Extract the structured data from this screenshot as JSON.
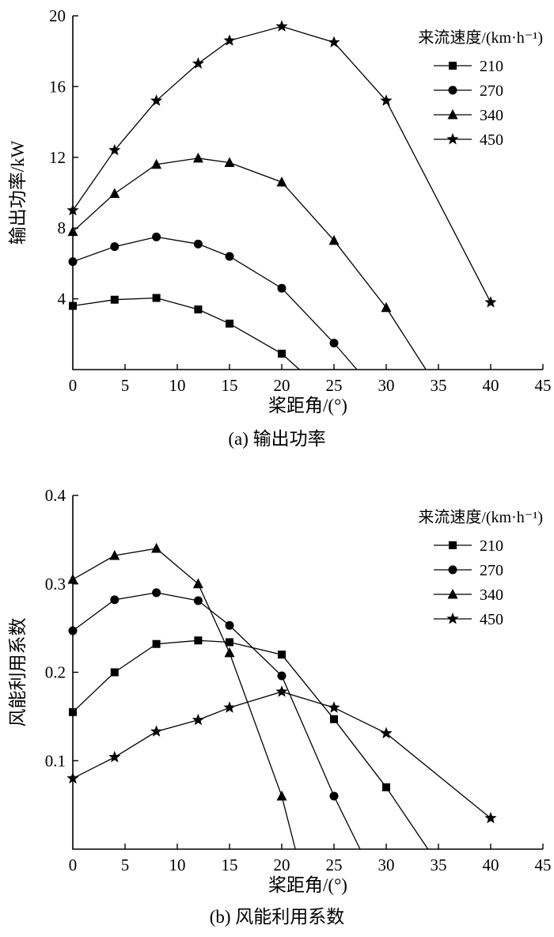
{
  "chart_data": [
    {
      "id": "a",
      "type": "line",
      "caption": "(a) 输出功率",
      "xlabel": "桨距角/(°)",
      "ylabel": "输出功率/kW",
      "xlim": [
        0,
        45
      ],
      "ylim": [
        0,
        20
      ],
      "xticks": [
        0,
        5,
        10,
        15,
        20,
        25,
        30,
        35,
        40,
        45
      ],
      "xtick_labels": [
        "0",
        "5",
        "10",
        "15",
        "20",
        "25",
        "30",
        "35",
        "40",
        "45"
      ],
      "yticks": [
        4,
        8,
        12,
        16,
        20
      ],
      "ytick_labels": [
        "4",
        "8",
        "12",
        "16",
        "20"
      ],
      "grid": false,
      "legend_position": "top-right",
      "legend_title": "来流速度/(km·h⁻¹)",
      "line_color": "#000000",
      "series": [
        {
          "name": "210",
          "marker": "square",
          "x": [
            0,
            4,
            8,
            12,
            15,
            20
          ],
          "y": [
            3.6,
            3.95,
            4.05,
            3.4,
            2.6,
            0.9
          ],
          "tail": [
            21.7,
            0
          ]
        },
        {
          "name": "270",
          "marker": "circle",
          "x": [
            0,
            4,
            8,
            12,
            15,
            20,
            25
          ],
          "y": [
            6.1,
            6.95,
            7.5,
            7.1,
            6.4,
            4.6,
            1.5
          ],
          "tail": [
            27.2,
            0
          ]
        },
        {
          "name": "340",
          "marker": "triangle",
          "x": [
            0,
            4,
            8,
            12,
            15,
            20,
            25,
            30
          ],
          "y": [
            7.8,
            9.95,
            11.6,
            11.95,
            11.7,
            10.6,
            7.3,
            3.5
          ],
          "tail": [
            33.8,
            0
          ]
        },
        {
          "name": "450",
          "marker": "star",
          "x": [
            0,
            4,
            8,
            12,
            15,
            20,
            25,
            30,
            40
          ],
          "y": [
            9.0,
            12.4,
            15.2,
            17.3,
            18.6,
            19.4,
            18.5,
            15.2,
            3.8
          ]
        }
      ]
    },
    {
      "id": "b",
      "type": "line",
      "caption": "(b) 风能利用系数",
      "xlabel": "桨距角/(°)",
      "ylabel": "风能利用系数",
      "xlim": [
        0,
        45
      ],
      "ylim": [
        0,
        0.4
      ],
      "xticks": [
        0,
        5,
        10,
        15,
        20,
        25,
        30,
        35,
        40,
        45
      ],
      "xtick_labels": [
        "0",
        "5",
        "10",
        "15",
        "20",
        "25",
        "30",
        "35",
        "40",
        "45"
      ],
      "yticks": [
        0.1,
        0.2,
        0.3,
        0.4
      ],
      "ytick_labels": [
        "0.1",
        "0.2",
        "0.3",
        "0.4"
      ],
      "grid": false,
      "legend_position": "top-right",
      "legend_title": "来流速度/(km·h⁻¹)",
      "line_color": "#000000",
      "series": [
        {
          "name": "210",
          "marker": "square",
          "x": [
            0,
            4,
            8,
            12,
            15,
            20,
            25,
            30
          ],
          "y": [
            0.155,
            0.2,
            0.232,
            0.236,
            0.234,
            0.22,
            0.147,
            0.07
          ],
          "tail": [
            34,
            0
          ]
        },
        {
          "name": "270",
          "marker": "circle",
          "x": [
            0,
            4,
            8,
            12,
            15,
            20,
            25
          ],
          "y": [
            0.247,
            0.282,
            0.29,
            0.281,
            0.253,
            0.196,
            0.06
          ],
          "tail": [
            27.5,
            0
          ]
        },
        {
          "name": "340",
          "marker": "triangle",
          "x": [
            0,
            4,
            8,
            12,
            15,
            20
          ],
          "y": [
            0.305,
            0.332,
            0.34,
            0.3,
            0.222,
            0.06
          ],
          "tail": [
            21.3,
            0
          ]
        },
        {
          "name": "450",
          "marker": "star",
          "x": [
            0,
            4,
            8,
            12,
            15,
            20,
            25,
            30,
            40
          ],
          "y": [
            0.08,
            0.104,
            0.133,
            0.146,
            0.16,
            0.178,
            0.16,
            0.131,
            0.035
          ]
        }
      ]
    }
  ]
}
